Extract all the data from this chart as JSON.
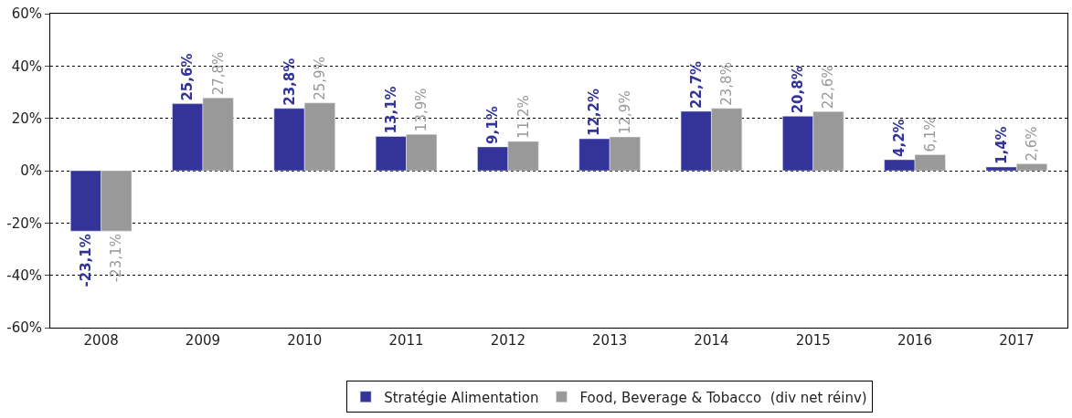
{
  "chart_data": {
    "type": "bar",
    "categories": [
      "2008",
      "2009",
      "2010",
      "2011",
      "2012",
      "2013",
      "2014",
      "2015",
      "2016",
      "2017"
    ],
    "series": [
      {
        "name": "Stratégie Alimentation",
        "color": "#333399",
        "values": [
          -23.1,
          25.6,
          23.8,
          13.1,
          9.1,
          12.2,
          22.7,
          20.8,
          4.2,
          1.4
        ],
        "value_labels": [
          "-23,1%",
          "25,6%",
          "23,8%",
          "13,1%",
          "9,1%",
          "12,2%",
          "22,7%",
          "20,8%",
          "4,2%",
          "1,4%"
        ]
      },
      {
        "name": "Food, Beverage & Tobacco  (div net réinv)",
        "color": "#999999",
        "values": [
          -23.1,
          27.8,
          25.9,
          13.9,
          11.2,
          12.9,
          23.8,
          22.6,
          6.1,
          2.6
        ],
        "value_labels": [
          "-23,1%",
          "27,8%",
          "25,9%",
          "13,9%",
          "11,2%",
          "12,9%",
          "23,8%",
          "22,6%",
          "6,1%",
          "2,6%"
        ]
      }
    ],
    "ylim": [
      -60,
      60
    ],
    "yticks": [
      {
        "value": -60,
        "label": "-60%"
      },
      {
        "value": -40,
        "label": "-40%"
      },
      {
        "value": -20,
        "label": "-20%"
      },
      {
        "value": 0,
        "label": "0%"
      },
      {
        "value": 20,
        "label": "20%"
      },
      {
        "value": 40,
        "label": "40%"
      },
      {
        "value": 60,
        "label": "60%"
      }
    ],
    "grid": "y",
    "legend": "bottom"
  }
}
